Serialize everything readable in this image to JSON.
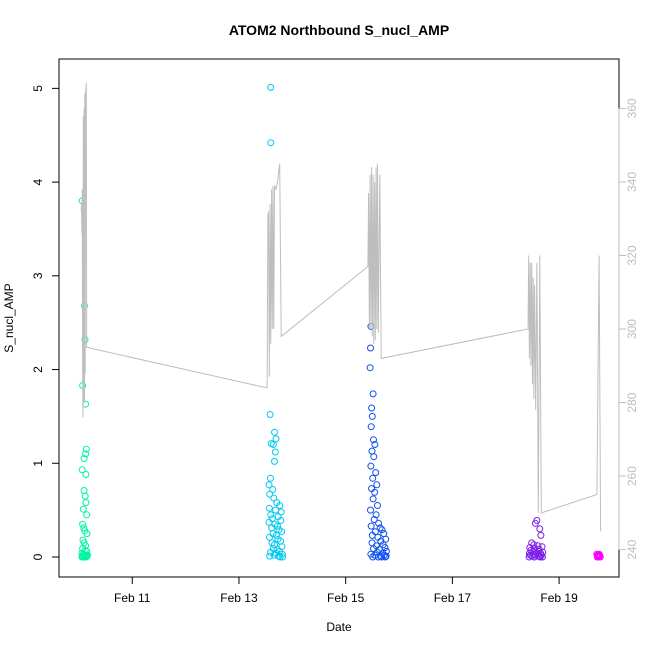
{
  "chart_data": {
    "type": "scatter",
    "title": "ATOM2 Northbound S_nucl_AMP",
    "xlabel": "Date",
    "ylabel": "S_nucl_AMP",
    "x_axis_type": "date",
    "xlim": [
      "2024-02-09T20:00",
      "2024-02-19T22:00"
    ],
    "ylim": [
      0,
      5.1
    ],
    "y2lim": [
      238,
      368
    ],
    "x_ticks": [
      {
        "date": "2024-02-11",
        "label": "Feb 11"
      },
      {
        "date": "2024-02-13",
        "label": "Feb 13"
      },
      {
        "date": "2024-02-15",
        "label": "Feb 15"
      },
      {
        "date": "2024-02-17",
        "label": "Feb 17"
      },
      {
        "date": "2024-02-19",
        "label": "Feb 19"
      }
    ],
    "y_ticks": [
      "0",
      "1",
      "2",
      "3",
      "4",
      "5"
    ],
    "y2_ticks": [
      "240",
      "260",
      "280",
      "300",
      "320",
      "340",
      "360"
    ],
    "grid": false,
    "legend": "none",
    "colors": {
      "axis": "#000000",
      "secondary_axis": "#bebebe",
      "secondary_line": "#bebebe"
    },
    "series": [
      {
        "type": "scatter",
        "color": "#00f5a0",
        "points": [
          [
            "2024-02-10T01:30",
            3.8
          ],
          [
            "2024-02-10T02:30",
            2.68
          ],
          [
            "2024-02-10T02:45",
            2.32
          ],
          [
            "2024-02-10T01:40",
            1.83
          ],
          [
            "2024-02-10T03:00",
            1.63
          ],
          [
            "2024-02-10T03:20",
            1.15
          ],
          [
            "2024-02-10T03:00",
            1.1
          ],
          [
            "2024-02-10T02:20",
            1.05
          ],
          [
            "2024-02-10T01:30",
            0.93
          ],
          [
            "2024-02-10T03:10",
            0.88
          ],
          [
            "2024-02-10T02:20",
            0.71
          ],
          [
            "2024-02-10T02:50",
            0.65
          ],
          [
            "2024-02-10T03:10",
            0.58
          ],
          [
            "2024-02-10T02:00",
            0.51
          ],
          [
            "2024-02-10T03:30",
            0.45
          ],
          [
            "2024-02-10T01:40",
            0.35
          ],
          [
            "2024-02-10T02:10",
            0.31
          ],
          [
            "2024-02-10T02:40",
            0.28
          ],
          [
            "2024-02-10T03:40",
            0.25
          ],
          [
            "2024-02-10T01:50",
            0.18
          ],
          [
            "2024-02-10T02:20",
            0.15
          ],
          [
            "2024-02-10T03:00",
            0.12
          ],
          [
            "2024-02-10T01:40",
            0.09
          ],
          [
            "2024-02-10T02:50",
            0.07
          ],
          [
            "2024-02-10T03:30",
            0.06
          ],
          [
            "2024-02-10T01:20",
            0.04
          ],
          [
            "2024-02-10T01:55",
            0.03
          ],
          [
            "2024-02-10T02:30",
            0.02
          ],
          [
            "2024-02-10T03:05",
            0.02
          ],
          [
            "2024-02-10T03:40",
            0.01
          ],
          [
            "2024-02-10T01:35",
            0.01
          ],
          [
            "2024-02-10T02:10",
            0.0
          ],
          [
            "2024-02-10T02:45",
            0.0
          ],
          [
            "2024-02-10T03:20",
            0.0
          ],
          [
            "2024-02-10T01:25",
            0.0
          ],
          [
            "2024-02-10T03:50",
            0.02
          ]
        ]
      },
      {
        "type": "scatter",
        "color": "#00c8f0",
        "points": [
          [
            "2024-02-13T14:20",
            5.01
          ],
          [
            "2024-02-13T14:20",
            4.42
          ],
          [
            "2024-02-13T14:00",
            1.52
          ],
          [
            "2024-02-13T16:00",
            1.33
          ],
          [
            "2024-02-13T16:40",
            1.26
          ],
          [
            "2024-02-13T14:30",
            1.21
          ],
          [
            "2024-02-13T15:30",
            1.2
          ],
          [
            "2024-02-13T16:20",
            1.12
          ],
          [
            "2024-02-13T16:00",
            1.02
          ],
          [
            "2024-02-13T14:10",
            0.84
          ],
          [
            "2024-02-13T13:30",
            0.77
          ],
          [
            "2024-02-13T15:10",
            0.72
          ],
          [
            "2024-02-13T13:50",
            0.67
          ],
          [
            "2024-02-13T15:40",
            0.63
          ],
          [
            "2024-02-13T17:00",
            0.58
          ],
          [
            "2024-02-13T18:20",
            0.55
          ],
          [
            "2024-02-13T13:40",
            0.52
          ],
          [
            "2024-02-13T16:30",
            0.5
          ],
          [
            "2024-02-13T19:00",
            0.48
          ],
          [
            "2024-02-13T14:20",
            0.45
          ],
          [
            "2024-02-13T17:40",
            0.43
          ],
          [
            "2024-02-13T15:00",
            0.41
          ],
          [
            "2024-02-13T18:50",
            0.39
          ],
          [
            "2024-02-13T13:30",
            0.37
          ],
          [
            "2024-02-13T16:10",
            0.35
          ],
          [
            "2024-02-13T17:20",
            0.33
          ],
          [
            "2024-02-13T14:40",
            0.31
          ],
          [
            "2024-02-13T18:00",
            0.29
          ],
          [
            "2024-02-13T19:10",
            0.27
          ],
          [
            "2024-02-13T15:20",
            0.25
          ],
          [
            "2024-02-13T16:50",
            0.23
          ],
          [
            "2024-02-13T13:45",
            0.21
          ],
          [
            "2024-02-13T17:30",
            0.19
          ],
          [
            "2024-02-13T18:40",
            0.17
          ],
          [
            "2024-02-13T14:50",
            0.15
          ],
          [
            "2024-02-13T16:00",
            0.13
          ],
          [
            "2024-02-13T19:20",
            0.11
          ],
          [
            "2024-02-13T15:30",
            0.09
          ],
          [
            "2024-02-13T17:10",
            0.08
          ],
          [
            "2024-02-13T18:10",
            0.06
          ],
          [
            "2024-02-13T14:10",
            0.05
          ],
          [
            "2024-02-13T16:40",
            0.04
          ],
          [
            "2024-02-13T19:30",
            0.03
          ],
          [
            "2024-02-13T15:50",
            0.02
          ],
          [
            "2024-02-13T17:50",
            0.01
          ],
          [
            "2024-02-13T13:50",
            0.01
          ],
          [
            "2024-02-13T18:30",
            0.0
          ],
          [
            "2024-02-13T19:40",
            0.0
          ]
        ]
      },
      {
        "type": "scatter",
        "color": "#1050f0",
        "points": [
          [
            "2024-02-15T11:20",
            2.46
          ],
          [
            "2024-02-15T11:10",
            2.23
          ],
          [
            "2024-02-15T11:00",
            2.02
          ],
          [
            "2024-02-15T12:20",
            1.74
          ],
          [
            "2024-02-15T11:40",
            1.59
          ],
          [
            "2024-02-15T12:00",
            1.5
          ],
          [
            "2024-02-15T11:30",
            1.39
          ],
          [
            "2024-02-15T12:30",
            1.25
          ],
          [
            "2024-02-15T13:10",
            1.2
          ],
          [
            "2024-02-15T11:50",
            1.13
          ],
          [
            "2024-02-15T12:40",
            1.07
          ],
          [
            "2024-02-15T11:20",
            0.97
          ],
          [
            "2024-02-15T13:30",
            0.9
          ],
          [
            "2024-02-15T12:10",
            0.84
          ],
          [
            "2024-02-15T14:00",
            0.77
          ],
          [
            "2024-02-15T11:40",
            0.73
          ],
          [
            "2024-02-15T13:00",
            0.69
          ],
          [
            "2024-02-15T12:20",
            0.62
          ],
          [
            "2024-02-15T14:20",
            0.55
          ],
          [
            "2024-02-15T11:10",
            0.5
          ],
          [
            "2024-02-15T13:40",
            0.45
          ],
          [
            "2024-02-15T12:50",
            0.4
          ],
          [
            "2024-02-15T14:50",
            0.36
          ],
          [
            "2024-02-15T11:30",
            0.33
          ],
          [
            "2024-02-15T15:30",
            0.31
          ],
          [
            "2024-02-15T16:20",
            0.29
          ],
          [
            "2024-02-15T13:20",
            0.27
          ],
          [
            "2024-02-15T17:10",
            0.25
          ],
          [
            "2024-02-15T12:00",
            0.23
          ],
          [
            "2024-02-15T14:30",
            0.21
          ],
          [
            "2024-02-15T18:00",
            0.19
          ],
          [
            "2024-02-15T15:50",
            0.17
          ],
          [
            "2024-02-15T11:50",
            0.15
          ],
          [
            "2024-02-15T16:50",
            0.13
          ],
          [
            "2024-02-15T13:50",
            0.12
          ],
          [
            "2024-02-15T17:40",
            0.1
          ],
          [
            "2024-02-15T12:30",
            0.09
          ],
          [
            "2024-02-15T15:10",
            0.08
          ],
          [
            "2024-02-15T18:20",
            0.06
          ],
          [
            "2024-02-15T14:10",
            0.05
          ],
          [
            "2024-02-15T16:40",
            0.04
          ],
          [
            "2024-02-15T11:20",
            0.03
          ],
          [
            "2024-02-15T17:20",
            0.02
          ],
          [
            "2024-02-15T13:10",
            0.02
          ],
          [
            "2024-02-15T15:40",
            0.01
          ],
          [
            "2024-02-15T18:10",
            0.01
          ],
          [
            "2024-02-15T12:10",
            0.0
          ],
          [
            "2024-02-15T16:10",
            0.0
          ],
          [
            "2024-02-15T14:40",
            0.0
          ],
          [
            "2024-02-15T17:50",
            0.0
          ]
        ]
      },
      {
        "type": "scatter",
        "color": "#7b20e8",
        "points": [
          [
            "2024-02-18T14:00",
            0.39
          ],
          [
            "2024-02-18T13:20",
            0.36
          ],
          [
            "2024-02-18T15:20",
            0.3
          ],
          [
            "2024-02-18T15:50",
            0.23
          ],
          [
            "2024-02-18T11:40",
            0.15
          ],
          [
            "2024-02-18T12:40",
            0.13
          ],
          [
            "2024-02-18T14:30",
            0.12
          ],
          [
            "2024-02-18T16:20",
            0.11
          ],
          [
            "2024-02-18T10:50",
            0.1
          ],
          [
            "2024-02-18T13:00",
            0.09
          ],
          [
            "2024-02-18T15:00",
            0.08
          ],
          [
            "2024-02-18T11:20",
            0.07
          ],
          [
            "2024-02-18T12:10",
            0.06
          ],
          [
            "2024-02-18T14:50",
            0.06
          ],
          [
            "2024-02-18T16:40",
            0.05
          ],
          [
            "2024-02-18T13:40",
            0.05
          ],
          [
            "2024-02-18T10:40",
            0.04
          ],
          [
            "2024-02-18T15:40",
            0.04
          ],
          [
            "2024-02-18T12:30",
            0.03
          ],
          [
            "2024-02-18T14:20",
            0.03
          ],
          [
            "2024-02-18T11:00",
            0.02
          ],
          [
            "2024-02-18T16:00",
            0.02
          ],
          [
            "2024-02-18T13:10",
            0.02
          ],
          [
            "2024-02-18T15:10",
            0.01
          ],
          [
            "2024-02-18T11:50",
            0.01
          ],
          [
            "2024-02-18T14:40",
            0.01
          ],
          [
            "2024-02-18T16:30",
            0.0
          ],
          [
            "2024-02-18T12:50",
            0.0
          ],
          [
            "2024-02-18T10:30",
            0.0
          ],
          [
            "2024-02-18T15:30",
            0.0
          ]
        ]
      },
      {
        "type": "scatter",
        "color": "#ff00ff",
        "points": [
          [
            "2024-02-19T17:00",
            0.03
          ],
          [
            "2024-02-19T17:20",
            0.02
          ],
          [
            "2024-02-19T17:40",
            0.02
          ],
          [
            "2024-02-19T18:00",
            0.03
          ],
          [
            "2024-02-19T18:20",
            0.01
          ],
          [
            "2024-02-19T17:10",
            0.0
          ],
          [
            "2024-02-19T17:30",
            0.01
          ],
          [
            "2024-02-19T17:50",
            0.0
          ],
          [
            "2024-02-19T18:10",
            0.02
          ],
          [
            "2024-02-19T18:30",
            0.0
          ]
        ]
      },
      {
        "type": "line",
        "axis": "secondary",
        "color": "#bebebe",
        "points": [
          [
            "2024-02-10T01:00",
            332
          ],
          [
            "2024-02-10T01:10",
            334
          ],
          [
            "2024-02-10T01:20",
            326
          ],
          [
            "2024-02-10T01:30",
            338
          ],
          [
            "2024-02-10T01:40",
            292
          ],
          [
            "2024-02-10T01:50",
            276
          ],
          [
            "2024-02-10T02:00",
            358
          ],
          [
            "2024-02-10T02:10",
            280
          ],
          [
            "2024-02-10T02:20",
            360
          ],
          [
            "2024-02-10T02:30",
            280
          ],
          [
            "2024-02-10T02:40",
            364
          ],
          [
            "2024-02-10T02:50",
            288
          ],
          [
            "2024-02-10T03:00",
            364
          ],
          [
            "2024-02-10T03:20",
            367
          ],
          [
            "2024-02-10T03:30",
            295
          ],
          [
            "2024-02-13T12:40",
            284
          ],
          [
            "2024-02-13T13:00",
            331
          ],
          [
            "2024-02-13T13:20",
            332
          ],
          [
            "2024-02-13T13:40",
            287
          ],
          [
            "2024-02-13T14:00",
            334
          ],
          [
            "2024-02-13T14:20",
            296
          ],
          [
            "2024-02-13T14:40",
            338
          ],
          [
            "2024-02-13T15:00",
            300
          ],
          [
            "2024-02-13T15:20",
            339
          ],
          [
            "2024-02-13T15:40",
            300
          ],
          [
            "2024-02-13T16:00",
            339
          ],
          [
            "2024-02-13T16:40",
            338
          ],
          [
            "2024-02-13T17:20",
            340
          ],
          [
            "2024-02-13T18:20",
            345
          ],
          [
            "2024-02-13T19:00",
            298
          ],
          [
            "2024-02-15T10:00",
            317
          ],
          [
            "2024-02-15T10:20",
            337
          ],
          [
            "2024-02-15T10:40",
            300
          ],
          [
            "2024-02-15T11:00",
            342
          ],
          [
            "2024-02-15T11:20",
            300
          ],
          [
            "2024-02-15T11:40",
            344
          ],
          [
            "2024-02-15T12:00",
            298
          ],
          [
            "2024-02-15T12:20",
            342
          ],
          [
            "2024-02-15T12:40",
            296
          ],
          [
            "2024-02-15T13:00",
            340
          ],
          [
            "2024-02-15T13:20",
            297
          ],
          [
            "2024-02-15T13:40",
            344
          ],
          [
            "2024-02-15T14:00",
            300
          ],
          [
            "2024-02-15T14:20",
            345
          ],
          [
            "2024-02-15T14:40",
            299
          ],
          [
            "2024-02-15T15:20",
            342
          ],
          [
            "2024-02-15T16:00",
            292
          ],
          [
            "2024-02-18T10:00",
            300
          ],
          [
            "2024-02-18T10:20",
            320
          ],
          [
            "2024-02-18T10:40",
            292
          ],
          [
            "2024-02-18T11:00",
            318
          ],
          [
            "2024-02-18T11:20",
            290
          ],
          [
            "2024-02-18T11:40",
            318
          ],
          [
            "2024-02-18T12:00",
            285
          ],
          [
            "2024-02-18T12:20",
            314
          ],
          [
            "2024-02-18T12:40",
            281
          ],
          [
            "2024-02-18T13:00",
            312
          ],
          [
            "2024-02-18T13:30",
            278
          ],
          [
            "2024-02-18T14:00",
            318
          ],
          [
            "2024-02-18T14:40",
            250
          ],
          [
            "2024-02-18T15:20",
            320
          ],
          [
            "2024-02-18T16:00",
            250
          ],
          [
            "2024-02-19T17:00",
            255
          ],
          [
            "2024-02-19T18:00",
            320
          ],
          [
            "2024-02-19T18:40",
            245
          ]
        ]
      }
    ]
  }
}
